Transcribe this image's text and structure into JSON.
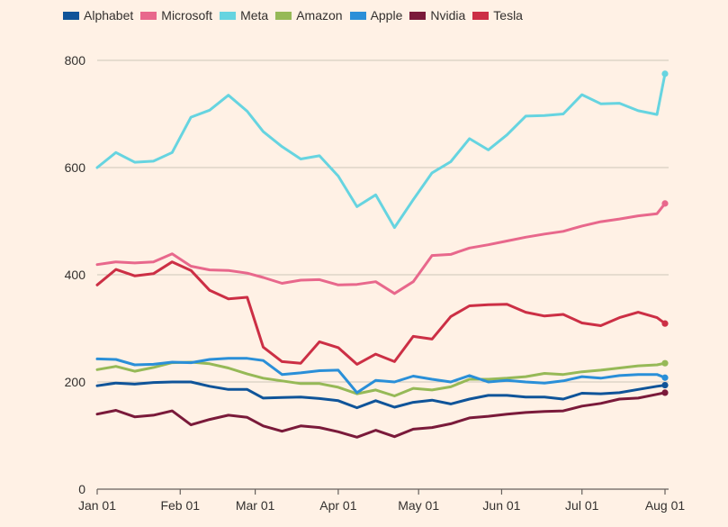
{
  "chart_data": {
    "type": "line",
    "title": "",
    "xlabel": "",
    "ylabel": "",
    "x_ticks": [
      "Jan 01",
      "Feb 01",
      "Mar 01",
      "Apr 01",
      "May 01",
      "Jun 01",
      "Jul 01",
      "Aug 01"
    ],
    "y_ticks": [
      "800",
      "600",
      "400",
      "200",
      "0"
    ],
    "x_range": [
      "Jan 01",
      "Aug 01"
    ],
    "ylim": [
      0,
      800
    ],
    "grid": true,
    "legend_position": "top-left",
    "series": [
      {
        "name": "Alphabet",
        "color": "#0F5499",
        "points": [
          [
            "Jan 01",
            193
          ],
          [
            "Jan 08",
            198
          ],
          [
            "Jan 15",
            196
          ],
          [
            "Jan 22",
            199
          ],
          [
            "Jan 29",
            200
          ],
          [
            "Feb 05",
            200
          ],
          [
            "Feb 12",
            192
          ],
          [
            "Feb 19",
            186
          ],
          [
            "Feb 26",
            186
          ],
          [
            "Mar 04",
            170
          ],
          [
            "Mar 11",
            171
          ],
          [
            "Mar 18",
            172
          ],
          [
            "Mar 25",
            169
          ],
          [
            "Apr 01",
            165
          ],
          [
            "Apr 08",
            152
          ],
          [
            "Apr 15",
            165
          ],
          [
            "Apr 22",
            153
          ],
          [
            "Apr 29",
            162
          ],
          [
            "May 06",
            166
          ],
          [
            "May 13",
            159
          ],
          [
            "May 20",
            168
          ],
          [
            "May 27",
            175
          ],
          [
            "Jun 03",
            175
          ],
          [
            "Jun 10",
            172
          ],
          [
            "Jun 17",
            172
          ],
          [
            "Jun 24",
            168
          ],
          [
            "Jul 01",
            179
          ],
          [
            "Jul 08",
            178
          ],
          [
            "Jul 15",
            180
          ],
          [
            "Jul 22",
            186
          ],
          [
            "Jul 29",
            192
          ],
          [
            "Aug 01",
            194
          ]
        ]
      },
      {
        "name": "Microsoft",
        "color": "#E8688C",
        "points": [
          [
            "Jan 01",
            419
          ],
          [
            "Jan 08",
            424
          ],
          [
            "Jan 15",
            422
          ],
          [
            "Jan 22",
            424
          ],
          [
            "Jan 29",
            439
          ],
          [
            "Feb 05",
            416
          ],
          [
            "Feb 12",
            409
          ],
          [
            "Feb 19",
            408
          ],
          [
            "Feb 26",
            403
          ],
          [
            "Mar 04",
            395
          ],
          [
            "Mar 11",
            384
          ],
          [
            "Mar 18",
            390
          ],
          [
            "Mar 25",
            391
          ],
          [
            "Apr 01",
            381
          ],
          [
            "Apr 08",
            382
          ],
          [
            "Apr 15",
            387
          ],
          [
            "Apr 22",
            365
          ],
          [
            "Apr 29",
            387
          ],
          [
            "May 06",
            436
          ],
          [
            "May 13",
            438
          ],
          [
            "May 20",
            450
          ],
          [
            "May 27",
            456
          ],
          [
            "Jun 03",
            463
          ],
          [
            "Jun 10",
            470
          ],
          [
            "Jun 17",
            476
          ],
          [
            "Jun 24",
            481
          ],
          [
            "Jul 01",
            491
          ],
          [
            "Jul 08",
            499
          ],
          [
            "Jul 15",
            504
          ],
          [
            "Jul 22",
            510
          ],
          [
            "Jul 29",
            514
          ],
          [
            "Aug 01",
            533
          ]
        ]
      },
      {
        "name": "Meta",
        "color": "#66D4E0",
        "points": [
          [
            "Jan 01",
            600
          ],
          [
            "Jan 08",
            628
          ],
          [
            "Jan 15",
            610
          ],
          [
            "Jan 22",
            612
          ],
          [
            "Jan 29",
            628
          ],
          [
            "Feb 05",
            694
          ],
          [
            "Feb 12",
            707
          ],
          [
            "Feb 19",
            735
          ],
          [
            "Feb 26",
            705
          ],
          [
            "Mar 04",
            667
          ],
          [
            "Mar 11",
            639
          ],
          [
            "Mar 18",
            616
          ],
          [
            "Mar 25",
            622
          ],
          [
            "Apr 01",
            584
          ],
          [
            "Apr 08",
            527
          ],
          [
            "Apr 15",
            549
          ],
          [
            "Apr 22",
            488
          ],
          [
            "Apr 29",
            540
          ],
          [
            "May 06",
            590
          ],
          [
            "May 13",
            611
          ],
          [
            "May 20",
            654
          ],
          [
            "May 27",
            633
          ],
          [
            "Jun 03",
            661
          ],
          [
            "Jun 10",
            696
          ],
          [
            "Jun 17",
            697
          ],
          [
            "Jun 24",
            700
          ],
          [
            "Jul 01",
            736
          ],
          [
            "Jul 08",
            719
          ],
          [
            "Jul 15",
            720
          ],
          [
            "Jul 22",
            706
          ],
          [
            "Jul 29",
            699
          ],
          [
            "Aug 01",
            775
          ]
        ]
      },
      {
        "name": "Amazon",
        "color": "#96B957",
        "points": [
          [
            "Jan 01",
            223
          ],
          [
            "Jan 08",
            229
          ],
          [
            "Jan 15",
            220
          ],
          [
            "Jan 22",
            227
          ],
          [
            "Jan 29",
            236
          ],
          [
            "Feb 05",
            237
          ],
          [
            "Feb 12",
            234
          ],
          [
            "Feb 19",
            226
          ],
          [
            "Feb 26",
            215
          ],
          [
            "Mar 04",
            207
          ],
          [
            "Mar 11",
            202
          ],
          [
            "Mar 18",
            197
          ],
          [
            "Mar 25",
            197
          ],
          [
            "Apr 01",
            190
          ],
          [
            "Apr 08",
            178
          ],
          [
            "Apr 15",
            185
          ],
          [
            "Apr 22",
            174
          ],
          [
            "Apr 29",
            188
          ],
          [
            "May 06",
            185
          ],
          [
            "May 13",
            191
          ],
          [
            "May 20",
            205
          ],
          [
            "May 27",
            205
          ],
          [
            "Jun 03",
            207
          ],
          [
            "Jun 10",
            210
          ],
          [
            "Jun 17",
            216
          ],
          [
            "Jun 24",
            214
          ],
          [
            "Jul 01",
            219
          ],
          [
            "Jul 08",
            222
          ],
          [
            "Jul 15",
            226
          ],
          [
            "Jul 22",
            230
          ],
          [
            "Jul 29",
            232
          ],
          [
            "Aug 01",
            235
          ]
        ]
      },
      {
        "name": "Apple",
        "color": "#2A8FD8",
        "points": [
          [
            "Jan 01",
            243
          ],
          [
            "Jan 08",
            242
          ],
          [
            "Jan 15",
            232
          ],
          [
            "Jan 22",
            233
          ],
          [
            "Jan 29",
            237
          ],
          [
            "Feb 05",
            236
          ],
          [
            "Feb 12",
            242
          ],
          [
            "Feb 19",
            244
          ],
          [
            "Feb 26",
            244
          ],
          [
            "Mar 04",
            240
          ],
          [
            "Mar 11",
            214
          ],
          [
            "Mar 18",
            217
          ],
          [
            "Mar 25",
            221
          ],
          [
            "Apr 01",
            222
          ],
          [
            "Apr 08",
            180
          ],
          [
            "Apr 15",
            203
          ],
          [
            "Apr 22",
            200
          ],
          [
            "Apr 29",
            211
          ],
          [
            "May 06",
            205
          ],
          [
            "May 13",
            200
          ],
          [
            "May 20",
            212
          ],
          [
            "May 27",
            200
          ],
          [
            "Jun 03",
            203
          ],
          [
            "Jun 10",
            200
          ],
          [
            "Jun 17",
            198
          ],
          [
            "Jun 24",
            202
          ],
          [
            "Jul 01",
            210
          ],
          [
            "Jul 08",
            207
          ],
          [
            "Jul 15",
            212
          ],
          [
            "Jul 22",
            214
          ],
          [
            "Jul 29",
            214
          ],
          [
            "Aug 01",
            208
          ]
        ]
      },
      {
        "name": "Nvidia",
        "color": "#7A1A3A",
        "points": [
          [
            "Jan 01",
            140
          ],
          [
            "Jan 08",
            147
          ],
          [
            "Jan 15",
            135
          ],
          [
            "Jan 22",
            138
          ],
          [
            "Jan 29",
            146
          ],
          [
            "Feb 05",
            120
          ],
          [
            "Feb 12",
            130
          ],
          [
            "Feb 19",
            138
          ],
          [
            "Feb 26",
            134
          ],
          [
            "Mar 04",
            118
          ],
          [
            "Mar 11",
            108
          ],
          [
            "Mar 18",
            118
          ],
          [
            "Mar 25",
            115
          ],
          [
            "Apr 01",
            107
          ],
          [
            "Apr 08",
            97
          ],
          [
            "Apr 15",
            110
          ],
          [
            "Apr 22",
            98
          ],
          [
            "Apr 29",
            112
          ],
          [
            "May 06",
            115
          ],
          [
            "May 13",
            122
          ],
          [
            "May 20",
            133
          ],
          [
            "May 27",
            136
          ],
          [
            "Jun 03",
            140
          ],
          [
            "Jun 10",
            143
          ],
          [
            "Jun 17",
            145
          ],
          [
            "Jun 24",
            146
          ],
          [
            "Jul 01",
            155
          ],
          [
            "Jul 08",
            160
          ],
          [
            "Jul 15",
            168
          ],
          [
            "Jul 22",
            170
          ],
          [
            "Jul 29",
            177
          ],
          [
            "Aug 01",
            180
          ]
        ]
      },
      {
        "name": "Tesla",
        "color": "#CC2F45",
        "points": [
          [
            "Jan 01",
            381
          ],
          [
            "Jan 08",
            410
          ],
          [
            "Jan 15",
            398
          ],
          [
            "Jan 22",
            402
          ],
          [
            "Jan 29",
            424
          ],
          [
            "Feb 05",
            408
          ],
          [
            "Feb 12",
            371
          ],
          [
            "Feb 19",
            355
          ],
          [
            "Feb 26",
            358
          ],
          [
            "Mar 04",
            265
          ],
          [
            "Mar 11",
            238
          ],
          [
            "Mar 18",
            235
          ],
          [
            "Mar 25",
            275
          ],
          [
            "Apr 01",
            264
          ],
          [
            "Apr 08",
            233
          ],
          [
            "Apr 15",
            252
          ],
          [
            "Apr 22",
            238
          ],
          [
            "Apr 29",
            285
          ],
          [
            "May 06",
            280
          ],
          [
            "May 13",
            322
          ],
          [
            "May 20",
            342
          ],
          [
            "May 27",
            344
          ],
          [
            "Jun 03",
            345
          ],
          [
            "Jun 10",
            330
          ],
          [
            "Jun 17",
            323
          ],
          [
            "Jun 24",
            326
          ],
          [
            "Jul 01",
            310
          ],
          [
            "Jul 08",
            305
          ],
          [
            "Jul 15",
            320
          ],
          [
            "Jul 22",
            330
          ],
          [
            "Jul 29",
            320
          ],
          [
            "Aug 01",
            309
          ]
        ]
      }
    ]
  }
}
